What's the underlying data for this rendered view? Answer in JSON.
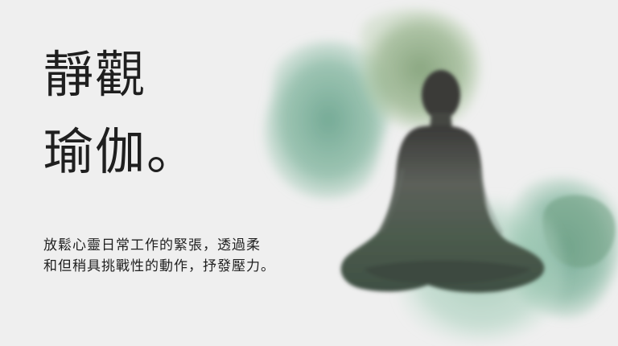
{
  "slide": {
    "title_line_1": "靜觀",
    "title_line_2": "瑜伽。",
    "description_line_1": "放鬆心靈日常工作的緊張，透過柔",
    "description_line_2": "和但稍具挑戰性的動作，抒發壓力。"
  },
  "colors": {
    "background": "#efefef",
    "text": "#1f1f1f",
    "watercolor_green": "#6fa88a",
    "watercolor_olive": "#8faa7c",
    "silhouette": "#3d4a3f"
  }
}
